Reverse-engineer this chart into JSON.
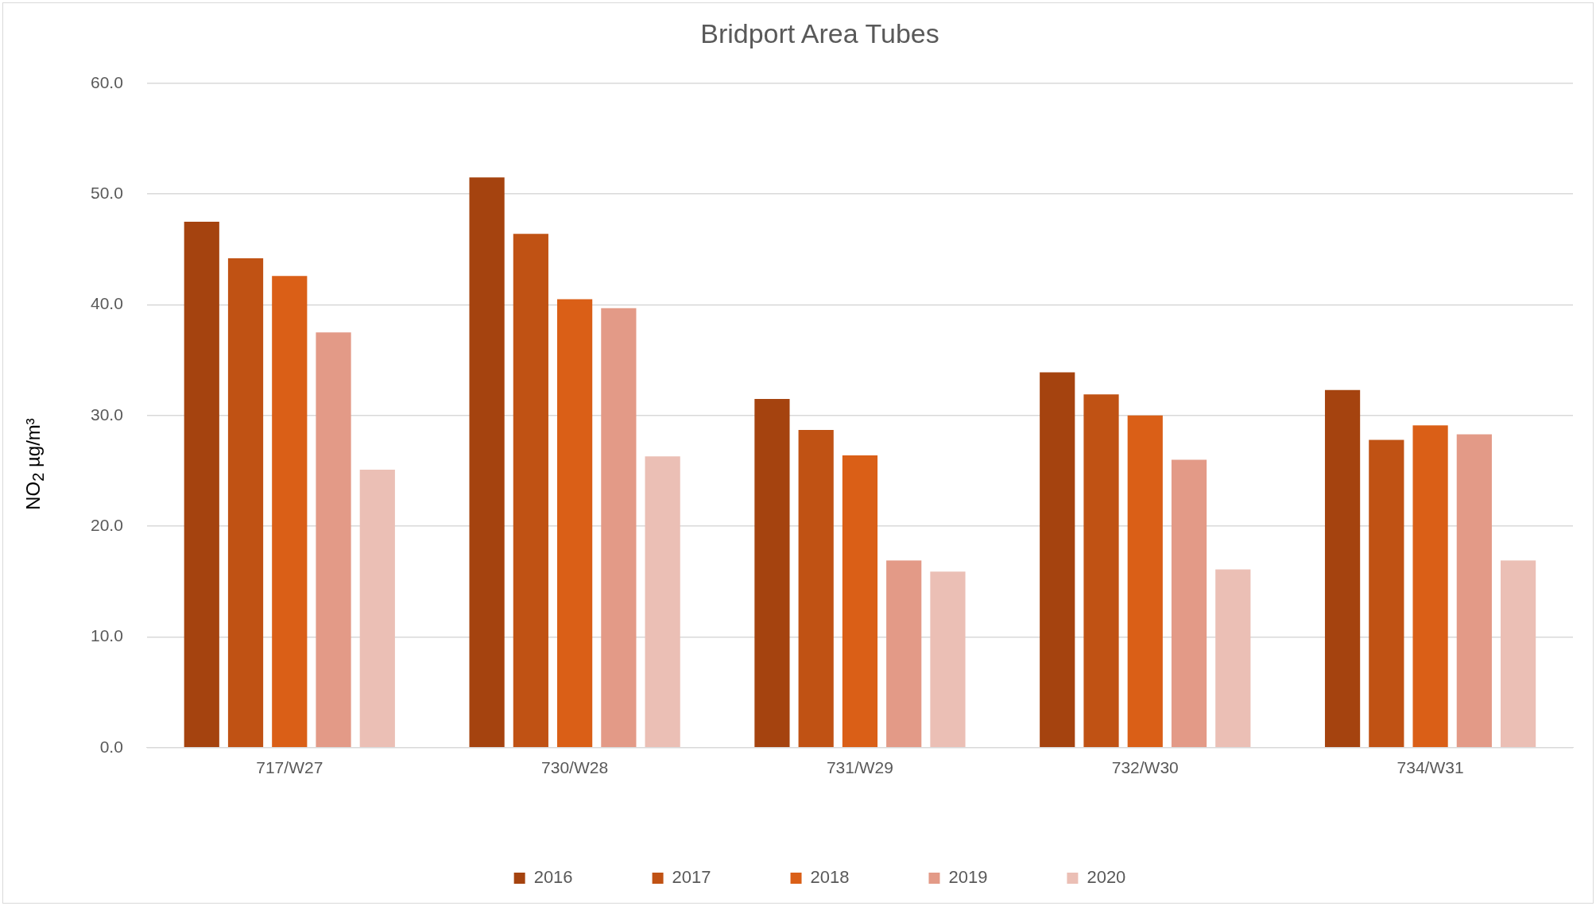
{
  "chart_data": {
    "type": "bar",
    "title": "Bridport Area Tubes",
    "ylabel": "NO$_{2}$ µg/m³",
    "categories": [
      "717/W27",
      "730/W28",
      "731/W29",
      "732/W30",
      "734/W31"
    ],
    "series": [
      {
        "name": "2016",
        "color": "#a5430f",
        "values": [
          47.5,
          51.5,
          31.5,
          33.9,
          32.3
        ]
      },
      {
        "name": "2017",
        "color": "#c05214",
        "values": [
          44.2,
          46.4,
          28.7,
          31.9,
          27.8
        ]
      },
      {
        "name": "2018",
        "color": "#da5f17",
        "values": [
          42.6,
          40.5,
          26.4,
          30.0,
          29.1
        ]
      },
      {
        "name": "2019",
        "color": "#e39a87",
        "values": [
          37.5,
          39.7,
          16.9,
          26.0,
          28.3
        ]
      },
      {
        "name": "2020",
        "color": "#ebbfb5",
        "values": [
          25.1,
          26.3,
          15.9,
          16.1,
          16.9
        ]
      }
    ],
    "ylim": [
      0,
      60
    ],
    "yticks": [
      {
        "value": 0,
        "label": "0.0"
      },
      {
        "value": 10,
        "label": "10.0"
      },
      {
        "value": 20,
        "label": "20.0"
      },
      {
        "value": 30,
        "label": "30.0"
      },
      {
        "value": 40,
        "label": "40.0"
      },
      {
        "value": 50,
        "label": "50.0"
      },
      {
        "value": 60,
        "label": "60.0"
      }
    ],
    "grid": "y",
    "legend": "bottom"
  }
}
